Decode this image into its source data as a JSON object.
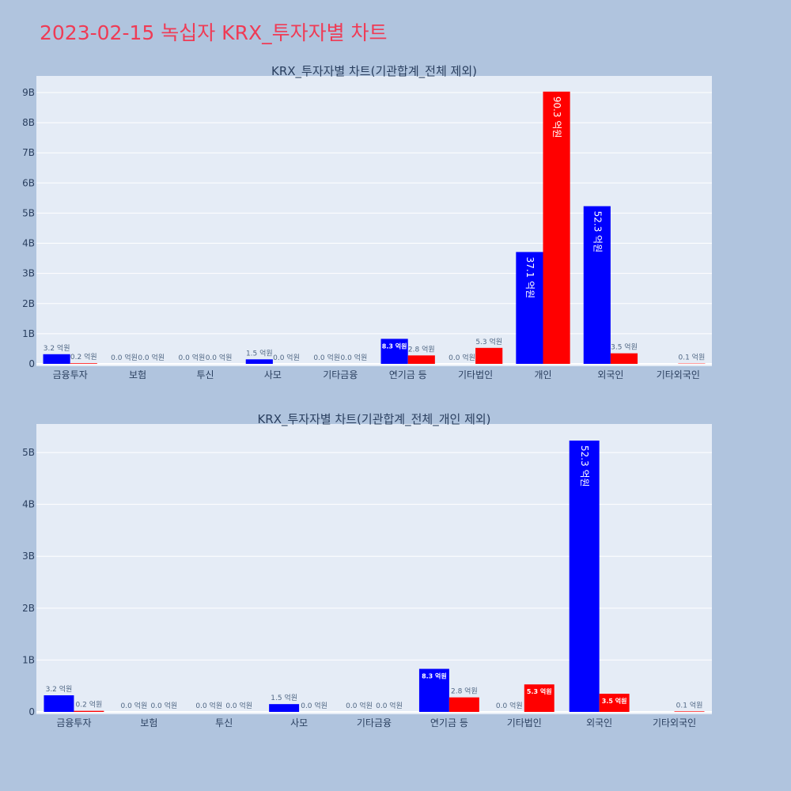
{
  "page_title": "2023-02-15 녹십자 KRX_투자자별 차트",
  "colors": {
    "buy": "#0000ff",
    "sell": "#ff0000",
    "plot_bg": "#e5ecf6",
    "page_bg": "#b0c4de",
    "title": "#ef3b55"
  },
  "chart_data": [
    {
      "type": "bar",
      "title": "KRX_투자자별 차트(기관합계_전체 제외)",
      "categories": [
        "금융투자",
        "보험",
        "투신",
        "사모",
        "기타금융",
        "연기금 등",
        "기타법인",
        "개인",
        "외국인",
        "기타외국인"
      ],
      "series": [
        {
          "color": "#0000ff",
          "values": [
            0.32,
            0.0,
            0.0,
            0.15,
            0.0,
            0.83,
            0.0,
            3.71,
            5.23,
            0.0
          ],
          "labels": [
            "3.2 억원",
            "0.0 억원",
            "0.0 억원",
            "1.5 억원",
            "0.0 억원",
            "8.3 억원",
            "0.0 억원",
            "37.1 억원",
            "52.3 억원",
            ""
          ]
        },
        {
          "color": "#ff0000",
          "values": [
            0.02,
            0.0,
            0.0,
            0.0,
            0.0,
            0.28,
            0.53,
            9.03,
            0.35,
            0.01
          ],
          "labels": [
            "0.2 억원",
            "0.0 억원",
            "0.0 억원",
            "0.0 억원",
            "0.0 억원",
            "2.8 억원",
            "5.3 억원",
            "90.3 억원",
            "3.5 억원",
            "0.1 억원"
          ]
        }
      ],
      "unit": "B",
      "yticks": [
        "0",
        "1B",
        "2B",
        "3B",
        "4B",
        "5B",
        "6B",
        "7B",
        "8B",
        "9B"
      ],
      "ylim": [
        0,
        9.55
      ],
      "grid": true,
      "legend": "none"
    },
    {
      "type": "bar",
      "title": "KRX_투자자별 차트(기관합계_전체_개인 제외)",
      "categories": [
        "금융투자",
        "보험",
        "투신",
        "사모",
        "기타금융",
        "연기금 등",
        "기타법인",
        "외국인",
        "기타외국인"
      ],
      "series": [
        {
          "color": "#0000ff",
          "values": [
            0.32,
            0.0,
            0.0,
            0.15,
            0.0,
            0.83,
            0.0,
            5.23,
            0.0
          ],
          "labels": [
            "3.2 억원",
            "0.0 억원",
            "0.0 억원",
            "1.5 억원",
            "0.0 억원",
            "8.3 억원",
            "0.0 억원",
            "52.3 억원",
            ""
          ]
        },
        {
          "color": "#ff0000",
          "values": [
            0.02,
            0.0,
            0.0,
            0.0,
            0.0,
            0.28,
            0.53,
            0.35,
            0.01
          ],
          "labels": [
            "0.2 억원",
            "0.0 억원",
            "0.0 억원",
            "0.0 억원",
            "0.0 억원",
            "2.8 억원",
            "5.3 억원",
            "3.5 억원",
            "0.1 억원"
          ]
        }
      ],
      "unit": "B",
      "yticks": [
        "0",
        "1B",
        "2B",
        "3B",
        "4B",
        "5B"
      ],
      "ylim": [
        0,
        5.55
      ],
      "grid": true,
      "legend": "none"
    }
  ]
}
